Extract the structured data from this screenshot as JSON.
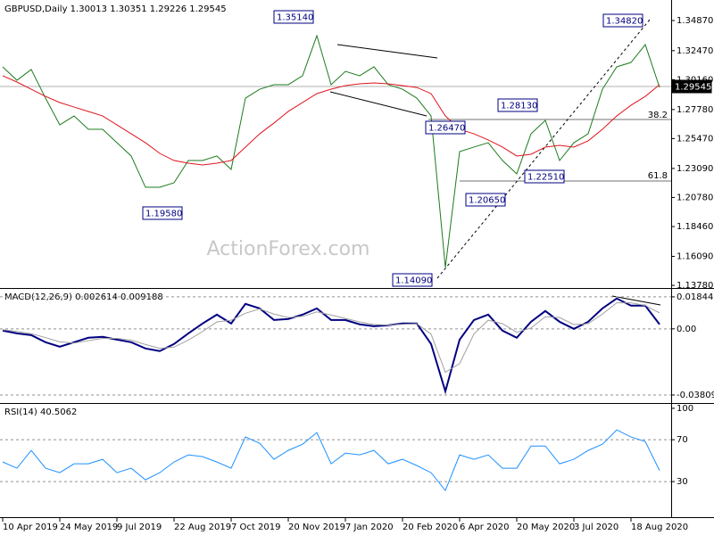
{
  "chart_data": [
    {
      "type": "line",
      "title": "GBPUSD,Daily  1.30013 1.30351 1.29226 1.29545",
      "series": [
        {
          "color": "#1e7b1e",
          "values": [
            1.3118,
            1.3011,
            1.3097,
            1.2869,
            1.2656,
            1.2727,
            1.2621,
            1.2621,
            1.2514,
            1.2408,
            1.2159,
            1.2159,
            1.2195,
            1.2372,
            1.2372,
            1.2408,
            1.2301,
            1.2869,
            1.294,
            1.2976,
            1.2976,
            1.3047,
            1.3366,
            1.2976,
            1.3082,
            1.3047,
            1.3118,
            1.2976,
            1.294,
            1.2869,
            1.2727,
            1.152,
            1.2443,
            1.2479,
            1.2514,
            1.2372,
            1.2266,
            1.2585,
            1.2692,
            1.2372,
            1.2514,
            1.2585,
            1.294,
            1.3118,
            1.3153,
            1.3295,
            1.29545
          ]
        },
        {
          "color": "#e0141e",
          "values": [
            1.3047,
            1.2997,
            1.294,
            1.2883,
            1.2834,
            1.2798,
            1.2763,
            1.2727,
            1.2656,
            1.2585,
            1.2514,
            1.2429,
            1.2372,
            1.2351,
            1.2337,
            1.2351,
            1.2372,
            1.2479,
            1.2585,
            1.2671,
            1.2763,
            1.2834,
            1.2905,
            1.294,
            1.2969,
            1.2983,
            1.299,
            1.2983,
            1.2969,
            1.2954,
            1.2905,
            1.2727,
            1.2621,
            1.2585,
            1.2536,
            1.2479,
            1.2408,
            1.2422,
            1.2479,
            1.2493,
            1.2479,
            1.2529,
            1.2621,
            1.2727,
            1.2812,
            1.2883,
            1.2976
          ]
        }
      ],
      "ylim": [
        1.1364,
        1.3629
      ],
      "yticks": [
        {
          "value": 1.3487,
          "label": "1.34870"
        },
        {
          "value": 1.3247,
          "label": "1.32470"
        },
        {
          "value": 1.3016,
          "label": "1.30160"
        },
        {
          "value": 1.2778,
          "label": "1.27780"
        },
        {
          "value": 1.2547,
          "label": "1.25470"
        },
        {
          "value": 1.2309,
          "label": "1.23090"
        },
        {
          "value": 1.2078,
          "label": "1.20780"
        },
        {
          "value": 1.1846,
          "label": "1.18460"
        },
        {
          "value": 1.1609,
          "label": "1.16090"
        },
        {
          "value": 1.1378,
          "label": "1.13780"
        }
      ],
      "annotations": [
        "1.35140",
        "1.34820",
        "1.28130",
        "1.26470",
        "1.22510",
        "1.20650",
        "1.19580",
        "1.14090",
        "1.29545"
      ],
      "fib_labels": [
        "38.2",
        "61.8"
      ],
      "watermark": "ActionForex.com"
    },
    {
      "type": "line",
      "title": "MACD(12,26,9) 0.002614 0.009188",
      "series": [
        {
          "color": "#000080",
          "values": [
            -0.001,
            -0.0026,
            -0.0036,
            -0.0077,
            -0.0103,
            -0.0077,
            -0.0051,
            -0.0046,
            -0.0062,
            -0.0077,
            -0.0113,
            -0.0128,
            -0.0087,
            -0.0026,
            0.0031,
            0.0082,
            0.0031,
            0.0144,
            0.0118,
            0.0051,
            0.0057,
            0.0082,
            0.0118,
            0.0051,
            0.0051,
            0.0026,
            0.0015,
            0.0021,
            0.0031,
            0.0031,
            -0.0087,
            -0.036,
            -0.0062,
            0.0051,
            0.0082,
            -0.001,
            -0.0051,
            0.0041,
            0.0103,
            0.0041,
            0.0,
            0.0041,
            0.0118,
            0.0175,
            0.0134,
            0.0134,
            0.002614
          ]
        },
        {
          "color": "#a0a0a0",
          "values": [
            -0.0005,
            -0.0015,
            -0.0028,
            -0.005,
            -0.0075,
            -0.0082,
            -0.0068,
            -0.0055,
            -0.0055,
            -0.0065,
            -0.009,
            -0.0112,
            -0.0105,
            -0.0065,
            -0.0015,
            0.004,
            0.005,
            0.009,
            0.0115,
            0.0085,
            0.0065,
            0.0072,
            0.0098,
            0.008,
            0.006,
            0.004,
            0.0025,
            0.0022,
            0.0026,
            0.003,
            -0.003,
            -0.025,
            -0.02,
            -0.003,
            0.005,
            0.003,
            -0.002,
            0.0005,
            0.007,
            0.0065,
            0.0025,
            0.003,
            0.0085,
            0.015,
            0.015,
            0.0135,
            0.009188
          ]
        }
      ],
      "ylim": [
        -0.0417,
        0.022
      ],
      "yticks": [
        0.018442,
        {
          "value": 0,
          "label": "0.00"
        },
        -0.038095
      ]
    },
    {
      "type": "line",
      "title": "RSI(14) 40.5062",
      "series": [
        {
          "color": "#1e90ff",
          "values": [
            48.7,
            42.8,
            59.8,
            42.8,
            38.5,
            47.0,
            47.0,
            51.3,
            38.5,
            42.8,
            31.7,
            38.5,
            48.7,
            55.5,
            53.8,
            48.7,
            42.8,
            72.6,
            66.6,
            51.3,
            59.8,
            65.7,
            76.8,
            47.0,
            57.2,
            55.5,
            59.8,
            47.0,
            51.3,
            45.3,
            38.5,
            21.5,
            55.5,
            51.3,
            55.5,
            42.8,
            42.8,
            64.0,
            64.0,
            47.0,
            51.3,
            59.8,
            65.7,
            79.4,
            72.6,
            68.3,
            40.5062
          ]
        }
      ],
      "ylim": [
        -2.3,
        102.5
      ],
      "yticks": [
        100,
        70,
        30
      ],
      "categories": [
        "10 Apr 2019",
        null,
        null,
        null,
        "24 May 2019",
        null,
        null,
        null,
        "9 Jul 2019",
        null,
        null,
        null,
        "22 Aug 2019",
        null,
        null,
        null,
        "7 Oct 2019",
        null,
        null,
        null,
        "20 Nov 2019",
        null,
        null,
        null,
        "7 Jan 2020",
        null,
        null,
        null,
        "20 Feb 2020",
        null,
        null,
        null,
        "6 Apr 2020",
        null,
        null,
        null,
        "20 May 2020",
        null,
        null,
        null,
        "3 Jul 2020",
        null,
        null,
        null,
        "18 Aug 2020",
        null,
        null
      ]
    }
  ]
}
